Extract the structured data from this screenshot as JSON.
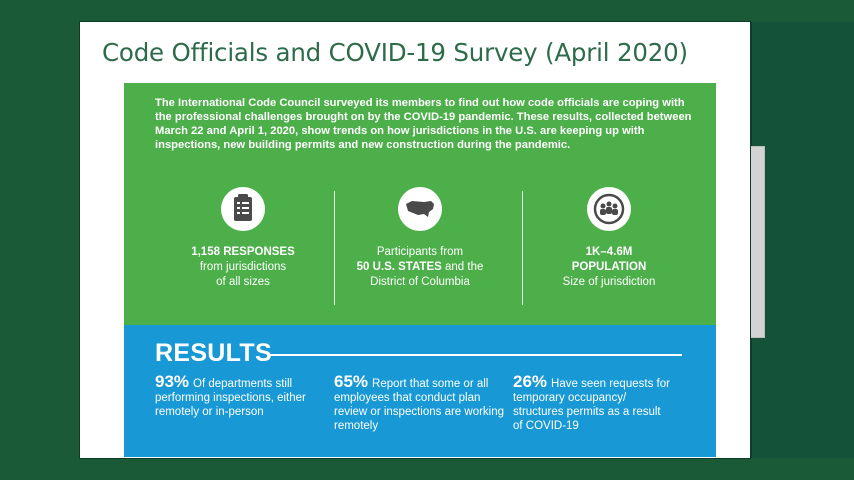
{
  "slide": {
    "title": "Code Officials and COVID-19 Survey (April 2020)"
  },
  "intro": {
    "text": "The International Code Council surveyed its members to find out how code officials are coping with the professional challenges brought on by the COVID-19 pandemic. These results, collected between March 22 and April 1, 2020, show trends on how jurisdictions in the U.S. are keeping up with inspections, new building permits and new construction during the pandemic."
  },
  "stats_top": [
    {
      "icon": "clipboard-icon",
      "line1": "1,158 RESPONSES",
      "line2": "from jurisdictions",
      "line3": "of all sizes"
    },
    {
      "icon": "us-map-icon",
      "line1": "Participants from",
      "line2": "50 U.S. STATES",
      "line2b": " and the",
      "line3": "District of Columbia"
    },
    {
      "icon": "globe-people-icon",
      "line1": "1K–4.6M",
      "line2": "POPULATION",
      "line3": "Size of jurisdiction"
    }
  ],
  "results": {
    "heading": "RESULTS",
    "items": [
      {
        "pct": "93%",
        "text": "Of departments still performing inspections, either remotely or in-person"
      },
      {
        "pct": "65%",
        "text": "Report that some or all employees that conduct plan review or inspections are working remotely"
      },
      {
        "pct": "26%",
        "text": "Have seen requests for temporary occupancy/ structures permits as a result of COVID-19"
      }
    ]
  },
  "colors": {
    "background": "#1a5a36",
    "title": "#2d6b4a",
    "green_panel": "#4caf4a",
    "blue_panel": "#1899d6"
  }
}
